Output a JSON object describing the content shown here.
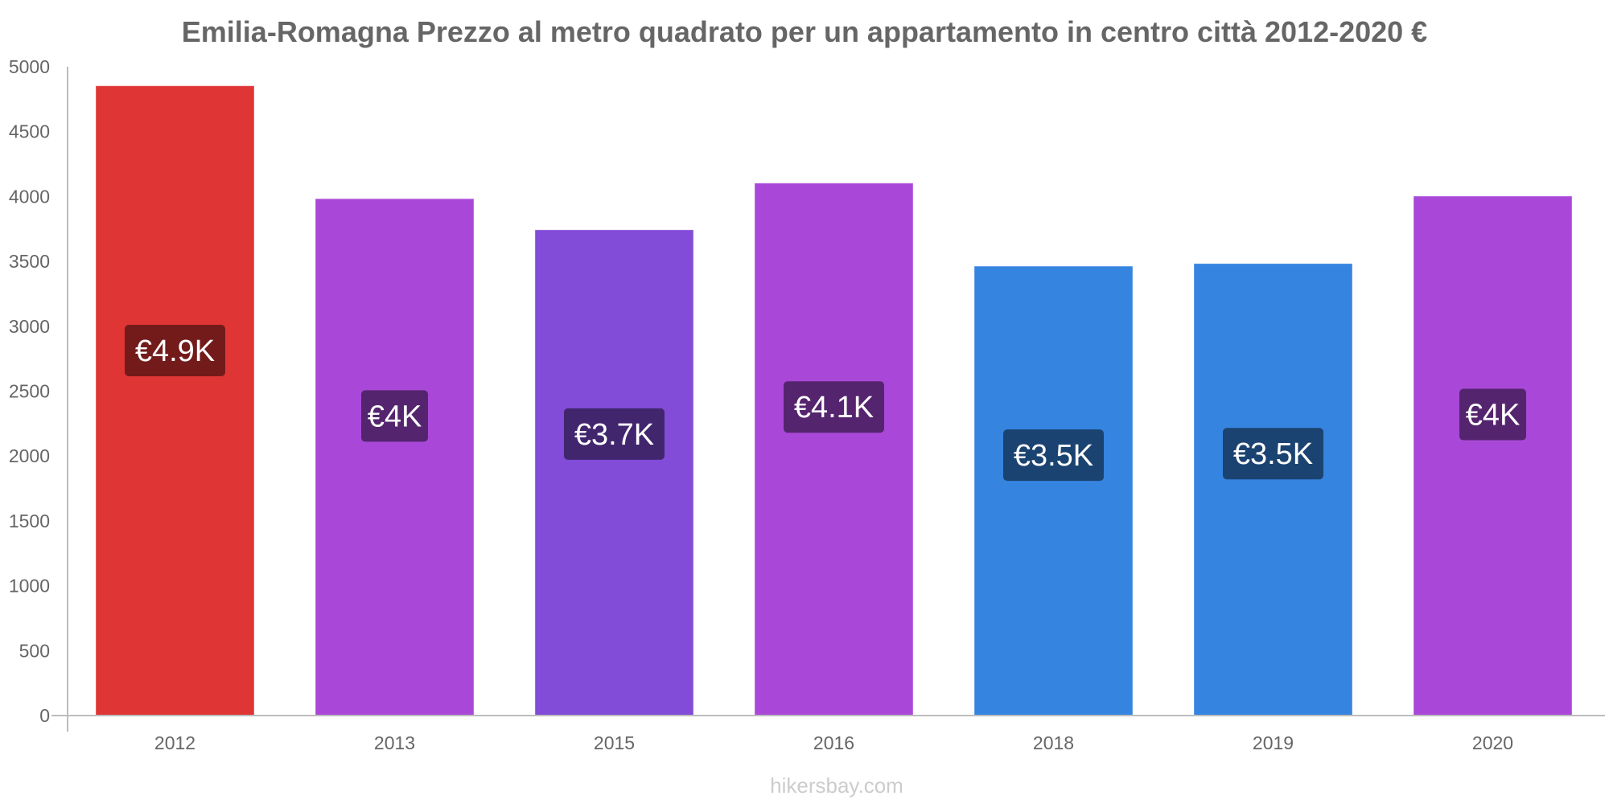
{
  "chart_data": {
    "type": "bar",
    "title": "Emilia-Romagna Prezzo al metro quadrato per un appartamento in centro città 2012-2020 €",
    "xlabel": "",
    "ylabel": "",
    "ylim": [
      0,
      5000
    ],
    "yticks": [
      0,
      500,
      1000,
      1500,
      2000,
      2500,
      3000,
      3500,
      4000,
      4500,
      5000
    ],
    "categories": [
      "2012",
      "2013",
      "2015",
      "2016",
      "2018",
      "2019",
      "2020"
    ],
    "values": [
      4850,
      3980,
      3740,
      4100,
      3460,
      3480,
      4000
    ],
    "data_labels": [
      "€4.9K",
      "€4K",
      "€3.7K",
      "€4.1K",
      "€3.5K",
      "€3.5K",
      "€4K"
    ],
    "bar_colors": [
      "#e03535",
      "#a948d8",
      "#824bd8",
      "#a948d8",
      "#3584e0",
      "#3584e0",
      "#a948d8"
    ],
    "label_bg_colors": [
      "#731b1b",
      "#55246e",
      "#41266e",
      "#55246e",
      "#1b4371",
      "#1b4371",
      "#55246e"
    ],
    "grid": false,
    "legend": "none"
  },
  "footer": {
    "source": "hikersbay.com"
  }
}
